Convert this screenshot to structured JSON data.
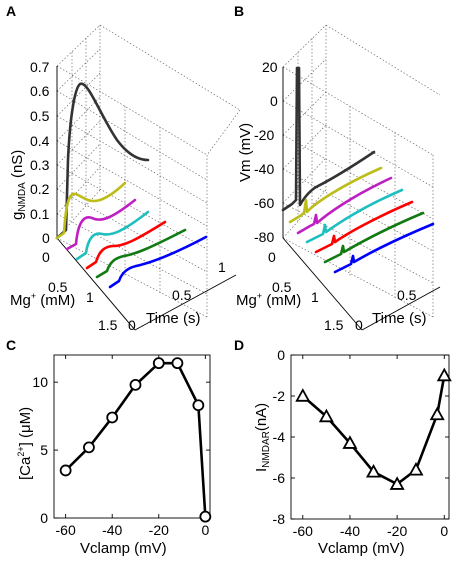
{
  "panels": {
    "A": {
      "letter": "A"
    },
    "B": {
      "letter": "B"
    },
    "C": {
      "letter": "C"
    },
    "D": {
      "letter": "D"
    }
  },
  "chart_data": [
    {
      "panel": "A",
      "type": "line",
      "projection": "3d",
      "zlabel": "g",
      "zlabel_sub": "NMDA",
      "zlabel_unit": " (nS)",
      "ylabel": "Mg",
      "ylabel_sup": "+",
      "ylabel_unit": " (mM)",
      "xlabel": "Time (s)",
      "zlim": [
        0,
        0.7
      ],
      "zticks": [
        "0.7",
        "0.6",
        "0.5",
        "0.4",
        "0.3",
        "0.2",
        "0.1",
        "0"
      ],
      "yticks": [
        "0",
        "0.5",
        "1",
        "1.5"
      ],
      "xticks": [
        "0",
        "0.5",
        "1"
      ],
      "grid": true,
      "series": [
        {
          "color": "#333333",
          "peak": 0.63
        },
        {
          "color": "#bdbd1a",
          "peak": 0.16
        },
        {
          "color": "#bf1fc2",
          "peak": 0.13
        },
        {
          "color": "#1fbfbf",
          "peak": 0.11
        },
        {
          "color": "#ff0000",
          "peak": 0.1
        },
        {
          "color": "#117a11",
          "peak": 0.09
        },
        {
          "color": "#0000ff",
          "peak": 0.08
        }
      ]
    },
    {
      "panel": "B",
      "type": "line",
      "projection": "3d",
      "zlabel": "Vm (mV)",
      "ylabel": "Mg",
      "ylabel_sup": "+",
      "ylabel_unit": " (mM)",
      "xlabel": "Time (s)",
      "zlim": [
        -80,
        20
      ],
      "zticks": [
        "20",
        "0",
        "-20",
        "-40",
        "-60",
        "-80"
      ],
      "yticks": [
        "0",
        "0.5",
        "1",
        "1.5"
      ],
      "xticks": [
        "0",
        "0.5"
      ],
      "grid": true,
      "series": [
        {
          "color": "#333333"
        },
        {
          "color": "#bdbd1a"
        },
        {
          "color": "#bf1fc2"
        },
        {
          "color": "#1fbfbf"
        },
        {
          "color": "#ff0000"
        },
        {
          "color": "#117a11"
        },
        {
          "color": "#0000ff"
        }
      ]
    },
    {
      "panel": "C",
      "type": "line",
      "xlabel": "Vclamp (mV)",
      "ylabel": "[Ca",
      "ylabel_sup": "2+",
      "ylabel_unit": "] (μM)",
      "xlim": [
        -65,
        2
      ],
      "ylim": [
        0,
        12
      ],
      "xticks": [
        -60,
        -40,
        -20,
        0
      ],
      "xticklabels": [
        "-60",
        "-40",
        "-20",
        "0"
      ],
      "yticks": [
        0,
        5,
        10
      ],
      "yticklabels": [
        "0",
        "5",
        "10"
      ],
      "marker": "circle",
      "color": "#000000",
      "x": [
        -60,
        -50,
        -40,
        -30,
        -20,
        -12,
        -3,
        0
      ],
      "y": [
        3.5,
        5.2,
        7.4,
        9.8,
        11.4,
        11.4,
        8.3,
        0.1
      ]
    },
    {
      "panel": "D",
      "type": "line",
      "xlabel": "Vclamp (mV)",
      "ylabel": "I",
      "ylabel_sub": "NMDAR",
      "ylabel_unit": "(nA)",
      "xlim": [
        -65,
        2
      ],
      "ylim": [
        -8,
        0
      ],
      "xticks": [
        -60,
        -40,
        -20,
        0
      ],
      "xticklabels": [
        "-60",
        "-40",
        "-20",
        "0"
      ],
      "yticks": [
        -8,
        -6,
        -4,
        -2,
        0
      ],
      "yticklabels": [
        "-8",
        "-6",
        "-4",
        "-2",
        "0"
      ],
      "marker": "triangle",
      "color": "#000000",
      "x": [
        -60,
        -50,
        -40,
        -30,
        -20,
        -12,
        -3,
        0
      ],
      "y": [
        -2.0,
        -3.0,
        -4.3,
        -5.7,
        -6.3,
        -5.6,
        -2.9,
        -1.0
      ]
    }
  ]
}
